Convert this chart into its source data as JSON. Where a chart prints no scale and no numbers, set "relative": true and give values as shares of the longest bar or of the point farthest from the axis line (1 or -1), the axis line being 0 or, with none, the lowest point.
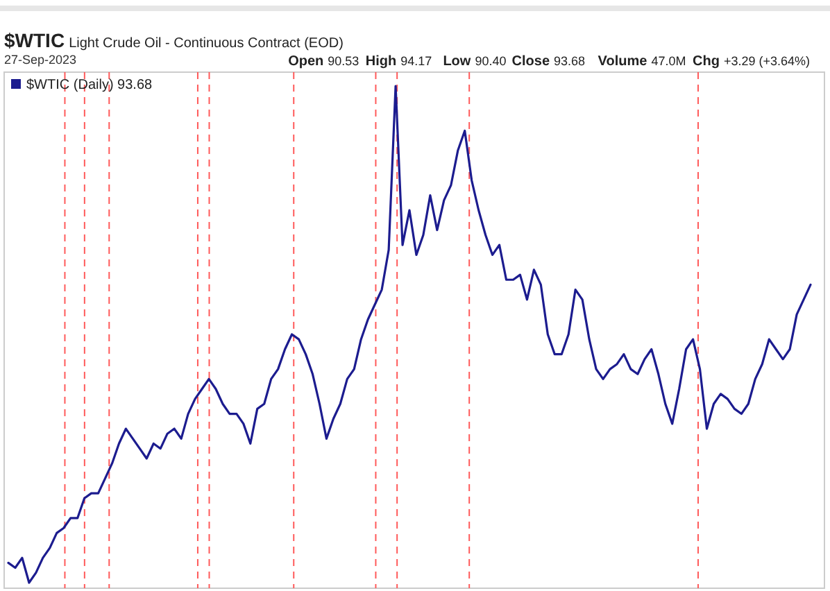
{
  "chart_data": {
    "type": "line",
    "title": "$WTIC Light Crude Oil - Continuous Contract (EOD)",
    "subtitle": "27-Sep-2023",
    "annotations": [
      "Open 90.53",
      "High 94.17",
      "Low 90.40",
      "Close 93.68",
      "Volume 47.0M",
      "Chg +3.29 (+3.64%)"
    ],
    "relative": true,
    "legend": "top left",
    "line_style": "solid",
    "categories": [
      null,
      null,
      null,
      null,
      null,
      null,
      null,
      null,
      null,
      null,
      null,
      null,
      null,
      null,
      null,
      null,
      null,
      null,
      null,
      null,
      null,
      null,
      null,
      null,
      null,
      null,
      null,
      null,
      null,
      null,
      null,
      null,
      null,
      null,
      null,
      null,
      null,
      null,
      null,
      null,
      null,
      null,
      null,
      null,
      null,
      null,
      null,
      null,
      null,
      null,
      null,
      null,
      null,
      null,
      null,
      null,
      null,
      null,
      null,
      null,
      null,
      null,
      null,
      null,
      null,
      null,
      null,
      null,
      null,
      null,
      null,
      null,
      null,
      null,
      null,
      null,
      null,
      null,
      null,
      null,
      null,
      null,
      null,
      null,
      null,
      null,
      null,
      null,
      null,
      null,
      null,
      null,
      null,
      null,
      null,
      null,
      null,
      null,
      null,
      null,
      null,
      null,
      null,
      null,
      null,
      null,
      null,
      null,
      null,
      null,
      null,
      null,
      null,
      null,
      null,
      null,
      null
    ],
    "series": [
      {
        "name": "$WTIC (Daily) 93.68",
        "color": "#1c1c8f",
        "values": [
          0.04,
          0.03,
          0.05,
          0,
          0.02,
          0.05,
          0.07,
          0.1,
          0.11,
          0.13,
          0.13,
          0.17,
          0.18,
          0.18,
          0.21,
          0.24,
          0.28,
          0.31,
          0.29,
          0.27,
          0.25,
          0.28,
          0.27,
          0.3,
          0.31,
          0.29,
          0.34,
          0.37,
          0.39,
          0.41,
          0.39,
          0.36,
          0.34,
          0.34,
          0.32,
          0.28,
          0.35,
          0.36,
          0.41,
          0.43,
          0.47,
          0.5,
          0.49,
          0.46,
          0.42,
          0.36,
          0.29,
          0.33,
          0.36,
          0.41,
          0.43,
          0.49,
          0.53,
          0.56,
          0.59,
          0.67,
          1,
          0.68,
          0.75,
          0.66,
          0.7,
          0.78,
          0.71,
          0.77,
          0.8,
          0.87,
          0.91,
          0.81,
          0.75,
          0.7,
          0.66,
          0.68,
          0.61,
          0.61,
          0.62,
          0.57,
          0.63,
          0.6,
          0.5,
          0.46,
          0.46,
          0.5,
          0.59,
          0.57,
          0.49,
          0.43,
          0.41,
          0.43,
          0.44,
          0.46,
          0.43,
          0.42,
          0.45,
          0.47,
          0.42,
          0.36,
          0.32,
          0.39,
          0.47,
          0.49,
          0.43,
          0.31,
          0.36,
          0.38,
          0.37,
          0.35,
          0.34,
          0.36,
          0.41,
          0.44,
          0.49,
          0.47,
          0.45,
          0.47,
          0.54,
          0.57,
          0.6
        ]
      }
    ]
  }
}
